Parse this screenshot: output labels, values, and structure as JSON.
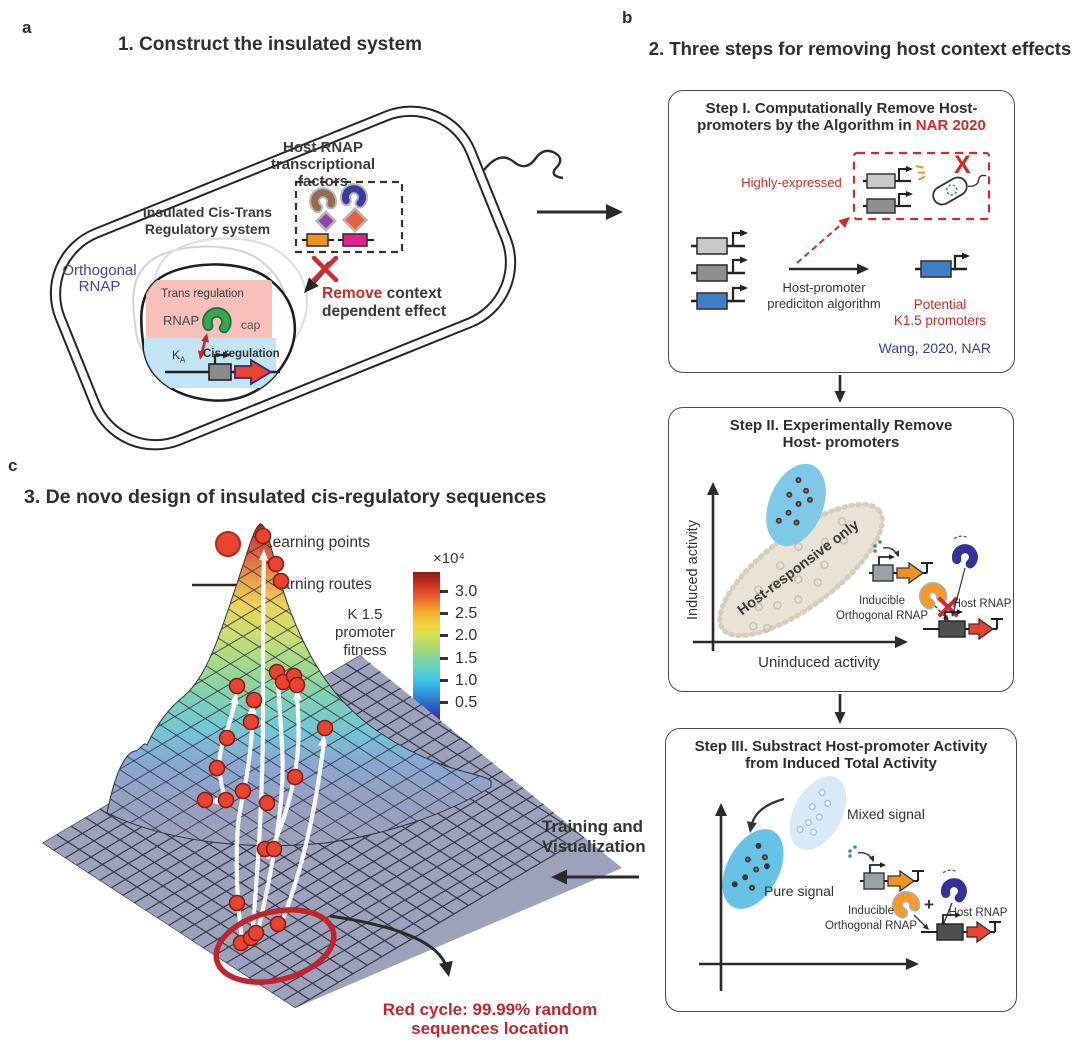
{
  "panel_a": {
    "label": "a",
    "title": "1. Construct the insulated system",
    "host_tf_line1": "Host RNAP",
    "host_tf_line2": "transcriptional factors",
    "insulated_line1": "Insulated Cis-Trans",
    "insulated_line2": "Regulatory system",
    "orthogonal_line1": "Orthogonal",
    "orthogonal_line2": "RNAP",
    "trans_regulation": "Trans regulation",
    "rnap": "RNAP",
    "cap": "cap",
    "ka_main": "K",
    "ka_sub": "A",
    "cis_regulation": "Cis regulation",
    "remove_highlight": "Remove",
    "remove_rest": "context",
    "remove_line2": "dependent effect"
  },
  "panel_b": {
    "label": "b",
    "title": "2. Three steps for removing host context effects",
    "step1": {
      "title_line1": "Step I. Computationally Remove Host-",
      "title_line2_prefix": "promoters by the Algorithm in ",
      "title_line2_highlight": "NAR 2020",
      "highly_expressed": "Highly-expressed",
      "x_mark": "X",
      "algo_line1": "Host-promoter",
      "algo_line2": "prediciton algorithm",
      "potential_line1": "Potential",
      "potential_line2": "K1.5 promoters",
      "citation": "Wang, 2020, NAR"
    },
    "step2": {
      "title_line1": "Step II. Experimentally Remove",
      "title_line2": "Host- promoters",
      "y_axis": "Induced activity",
      "x_axis": "Uninduced activity",
      "blob_label": "Host-responsive only",
      "inducible_line1": "Inducible",
      "inducible_line2": "Orthogonal RNAP",
      "host_rnap": "Host RNAP"
    },
    "step3": {
      "title_line1": "Step III. Substract Host-promoter Activity",
      "title_line2": "from Induced Total Activity",
      "mixed_signal": "Mixed signal",
      "pure_signal": "Pure signal",
      "inducible_line1": "Inducible",
      "inducible_line2": "Orthogonal RNAP",
      "plus": "+",
      "host_rnap": "Host RNAP"
    }
  },
  "panel_c": {
    "label": "c",
    "title": "3. De novo design of insulated cis-regulatory sequences",
    "legend_points": "Learning points",
    "legend_routes": "Learning routes",
    "fitness_line1": "K 1.5",
    "fitness_line2": "promoter",
    "fitness_line3": "fitness",
    "colorbar_exp": "×10⁴",
    "colorbar_ticks": [
      "3.0",
      "2.5",
      "2.0",
      "1.5",
      "1.0",
      "0.5"
    ],
    "training_line1": "Training and",
    "training_line2": "Visualization",
    "red_cycle_line1": "Red cycle: 99.99% random",
    "red_cycle_line2": "sequences location"
  },
  "chart_data": {
    "type": "area",
    "subtype": "3d-surface-fitness-landscape",
    "title": "K 1.5 promoter fitness",
    "colorbar": {
      "colormap": "jet",
      "scale_label": "×10⁴",
      "ticks": [
        3.0,
        2.5,
        2.0,
        1.5,
        1.0,
        0.5
      ]
    },
    "legend": [
      "Learning points",
      "Learning routes"
    ],
    "annotations": [
      "Red cycle: 99.99% random sequences location"
    ],
    "learning_points_svg": [
      [
        238,
        31
      ],
      [
        251,
        59
      ],
      [
        256,
        76
      ],
      [
        252,
        167
      ],
      [
        258,
        177
      ],
      [
        269,
        171
      ],
      [
        272,
        180
      ],
      [
        212,
        181
      ],
      [
        229,
        195
      ],
      [
        226,
        217
      ],
      [
        202,
        233
      ],
      [
        300,
        223
      ],
      [
        192,
        263
      ],
      [
        270,
        272
      ],
      [
        218,
        286
      ],
      [
        180,
        295
      ],
      [
        201,
        295
      ],
      [
        242,
        298
      ],
      [
        240,
        344
      ],
      [
        249,
        344
      ],
      [
        212,
        398
      ],
      [
        253,
        419
      ],
      [
        216,
        438
      ],
      [
        226,
        433
      ],
      [
        231,
        428
      ]
    ]
  }
}
